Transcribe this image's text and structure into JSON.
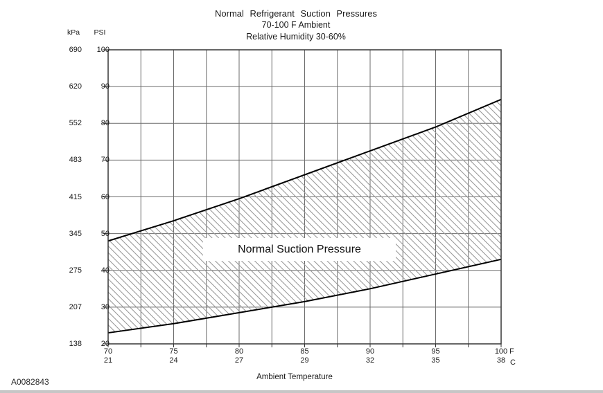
{
  "figure_id": "A0082843",
  "chart_data": {
    "type": "area",
    "title": "Normal Refrigerant Suction Pressures",
    "subtitle1": "70-100 F Ambient",
    "subtitle2": "Relative Humidity 30-60%",
    "xlabel": "Ambient Temperature",
    "x_unit_labels": [
      "F",
      "C"
    ],
    "y_unit_labels": [
      "kPa",
      "PSI"
    ],
    "xlim": [
      70,
      100
    ],
    "ylim": [
      20,
      100
    ],
    "x_minor_step": 2.5,
    "grid": true,
    "x_ticks_f": [
      70,
      75,
      80,
      85,
      90,
      95,
      100
    ],
    "x_ticks_c": [
      21,
      24,
      27,
      29,
      32,
      35,
      38
    ],
    "y_ticks_psi": [
      100,
      90,
      80,
      70,
      60,
      50,
      40,
      30,
      20
    ],
    "y_ticks_kpa": [
      690,
      620,
      552,
      483,
      415,
      345,
      275,
      207,
      138
    ],
    "band": {
      "label": "Normal Suction Pressure",
      "x_f": [
        70,
        75,
        80,
        85,
        90,
        95,
        100
      ],
      "upper_psi": [
        48,
        53.5,
        59.5,
        66,
        72.5,
        79,
        86.5
      ],
      "lower_psi": [
        23,
        25.5,
        28.5,
        31.5,
        35,
        39,
        43
      ]
    },
    "colors": {
      "grid": "#6b6b6b",
      "border": "#333333",
      "band_edge": "#000000",
      "hatch": "#9a9a9a",
      "text": "#1a1a1a"
    }
  }
}
